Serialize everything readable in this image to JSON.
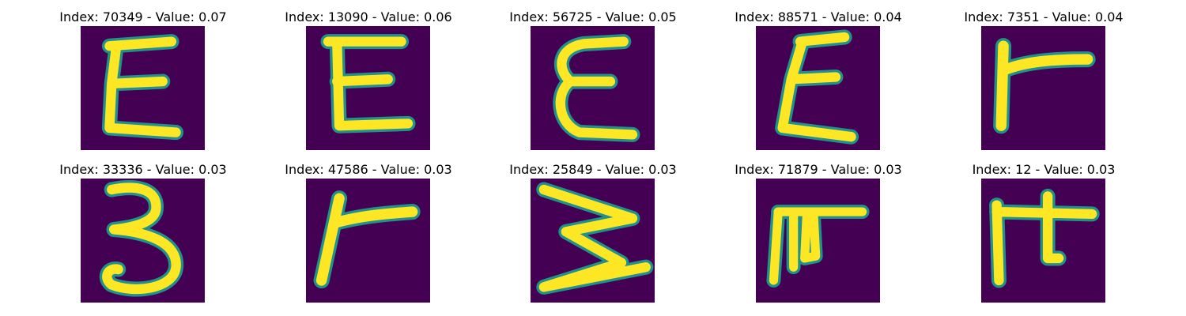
{
  "figure": {
    "colors": {
      "background": "#440154",
      "stroke_edge": "#21918c",
      "stroke_core": "#fde725"
    },
    "panels": [
      {
        "title": "Index: 70349 - Value: 0.07",
        "glyph": "epsilon-like-E"
      },
      {
        "title": "Index: 13090 - Value: 0.06",
        "glyph": "E-like"
      },
      {
        "title": "Index: 56725 - Value: 0.05",
        "glyph": "epsilon-like-E"
      },
      {
        "title": "Index: 88571 - Value: 0.04",
        "glyph": "epsilon-like-E"
      },
      {
        "title": "Index: 7351 - Value: 0.04",
        "glyph": "r-like"
      },
      {
        "title": "Index: 33336 - Value: 0.03",
        "glyph": "digit-3"
      },
      {
        "title": "Index: 47586 - Value: 0.03",
        "glyph": "r-like"
      },
      {
        "title": "Index: 25849 - Value: 0.03",
        "glyph": "rotated-W"
      },
      {
        "title": "Index: 71879 - Value: 0.03",
        "glyph": "F-like"
      },
      {
        "title": "Index: 12 - Value: 0.03",
        "glyph": "F-like"
      }
    ]
  }
}
